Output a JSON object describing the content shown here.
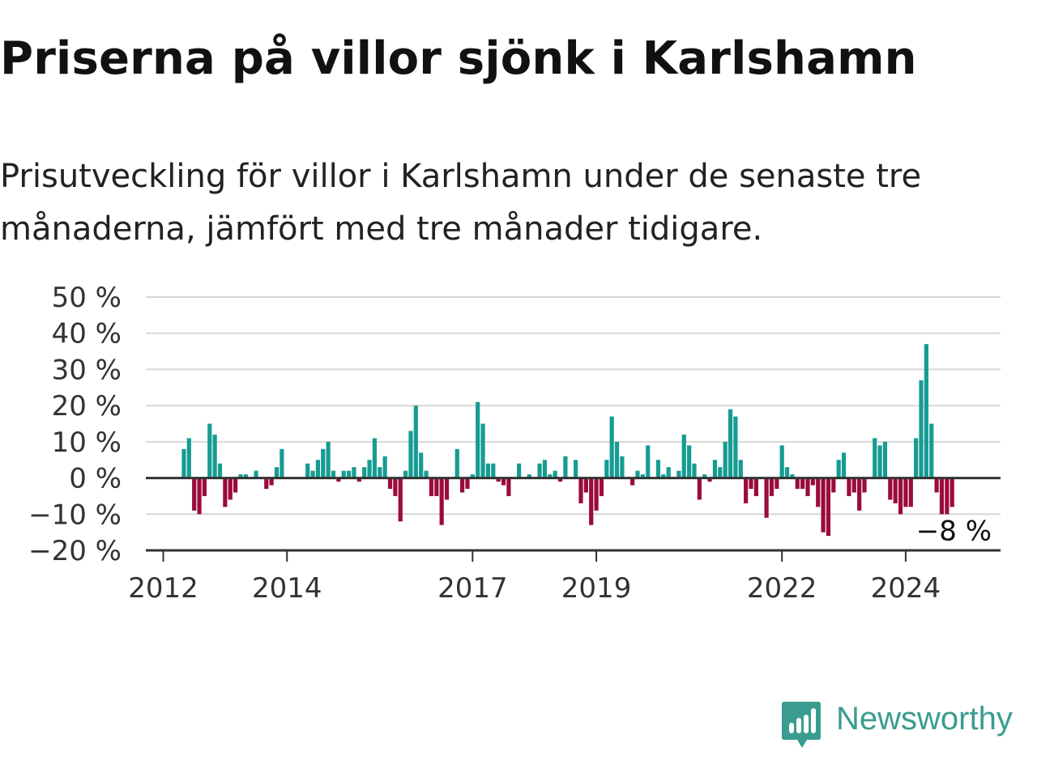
{
  "header": {
    "title": "Priserna på villor sjönk i Karlshamn",
    "subtitle": "Prisutveckling för villor i Karlshamn under de senaste tre månaderna, jämfört med tre månader tidigare."
  },
  "brand": {
    "name": "Newsworthy",
    "color": "#3a9c8f"
  },
  "colors": {
    "positive": "#169c92",
    "negative": "#9b0b3d",
    "axis": "#333333",
    "grid": "#d8d8d8"
  },
  "chart_data": {
    "type": "bar",
    "x_start": "2012-01",
    "frequency": "monthly",
    "y_tick_labels": [
      "50 %",
      "40 %",
      "30 %",
      "20 %",
      "10 %",
      "0 %",
      "−10 %",
      "−20 %"
    ],
    "y_ticks": [
      50,
      40,
      30,
      20,
      10,
      0,
      -10,
      -20
    ],
    "ylim": [
      -20,
      50
    ],
    "x_tick_labels": [
      "2012",
      "2014",
      "2017",
      "2019",
      "2022",
      "2024"
    ],
    "x_tick_dates": [
      "2012-01",
      "2014-01",
      "2017-01",
      "2019-01",
      "2022-01",
      "2024-01"
    ],
    "last_label": "−8 %",
    "series": [
      {
        "values": [
          0,
          0,
          0,
          0,
          8,
          11,
          -9,
          -10,
          -5,
          15,
          12,
          4,
          -8,
          -6,
          -4,
          1,
          1,
          0,
          2,
          0,
          -3,
          -2,
          3,
          8,
          0,
          0,
          0,
          0,
          4,
          2,
          5,
          8,
          10,
          2,
          -1,
          2,
          2,
          3,
          -1,
          3,
          5,
          11,
          3,
          6,
          -3,
          -5,
          -12,
          2,
          13,
          20,
          7,
          2,
          -5,
          -5,
          -13,
          -6,
          0,
          8,
          -4,
          -3,
          1,
          21,
          15,
          4,
          4,
          -1,
          -2,
          -5,
          0,
          4,
          0,
          1,
          0,
          4,
          5,
          1,
          2,
          -1,
          6,
          0,
          5,
          -7,
          -4,
          -13,
          -9,
          -5,
          5,
          17,
          10,
          6,
          0,
          -2,
          2,
          1,
          9,
          0,
          5,
          1,
          3,
          0,
          2,
          12,
          9,
          4,
          -6,
          1,
          -1,
          5,
          3,
          10,
          19,
          17,
          5,
          -7,
          -3,
          -5,
          0,
          -11,
          -5,
          -3,
          9,
          3,
          1,
          -3,
          -3,
          -5,
          -2,
          -8,
          -15,
          -16,
          -4,
          5,
          7,
          -5,
          -4,
          -9,
          -4,
          0,
          11,
          9,
          10,
          -6,
          -7,
          -10,
          -8,
          -8,
          11,
          27,
          37,
          15,
          -4,
          -10,
          -10,
          -8
        ]
      }
    ]
  }
}
